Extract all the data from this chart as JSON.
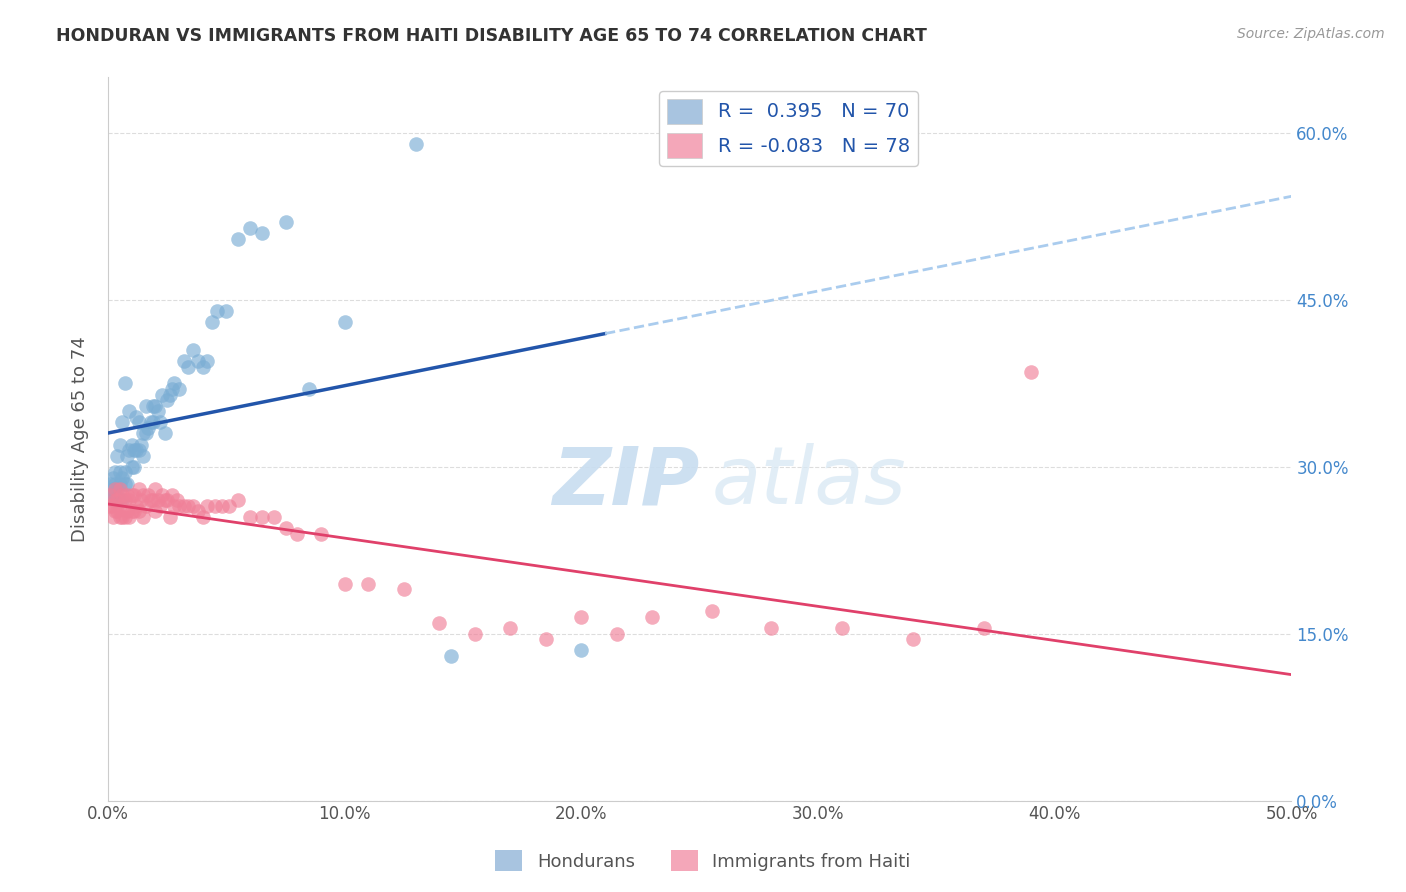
{
  "title": "HONDURAN VS IMMIGRANTS FROM HAITI DISABILITY AGE 65 TO 74 CORRELATION CHART",
  "source": "Source: ZipAtlas.com",
  "ylabel": "Disability Age 65 to 74",
  "xmin": 0.0,
  "xmax": 0.5,
  "ymin": 0.0,
  "ymax": 0.65,
  "legend1_label": "R =  0.395   N = 70",
  "legend2_label": "R = -0.083   N = 78",
  "legend1_color": "#a8c4e0",
  "legend2_color": "#f4a7b9",
  "scatter1_color": "#7aadd4",
  "scatter2_color": "#f08098",
  "line1_color": "#2255aa",
  "line2_color": "#e0406a",
  "line_dashed_color": "#aaccee",
  "watermark_zip": "ZIP",
  "watermark_atlas": "atlas",
  "background_color": "#ffffff",
  "grid_color": "#dddddd",
  "honduran_x": [
    0.001,
    0.001,
    0.002,
    0.002,
    0.002,
    0.003,
    0.003,
    0.003,
    0.004,
    0.004,
    0.004,
    0.005,
    0.005,
    0.005,
    0.005,
    0.006,
    0.006,
    0.006,
    0.007,
    0.007,
    0.007,
    0.008,
    0.008,
    0.009,
    0.009,
    0.01,
    0.01,
    0.011,
    0.011,
    0.012,
    0.012,
    0.013,
    0.013,
    0.014,
    0.015,
    0.015,
    0.016,
    0.016,
    0.017,
    0.018,
    0.019,
    0.019,
    0.02,
    0.021,
    0.022,
    0.023,
    0.024,
    0.025,
    0.026,
    0.027,
    0.028,
    0.03,
    0.032,
    0.034,
    0.036,
    0.038,
    0.04,
    0.042,
    0.044,
    0.046,
    0.05,
    0.055,
    0.06,
    0.065,
    0.075,
    0.085,
    0.1,
    0.13,
    0.145,
    0.2
  ],
  "honduran_y": [
    0.275,
    0.285,
    0.28,
    0.27,
    0.29,
    0.275,
    0.285,
    0.295,
    0.27,
    0.28,
    0.31,
    0.27,
    0.285,
    0.295,
    0.32,
    0.27,
    0.29,
    0.34,
    0.285,
    0.295,
    0.375,
    0.285,
    0.31,
    0.315,
    0.35,
    0.3,
    0.32,
    0.3,
    0.315,
    0.315,
    0.345,
    0.315,
    0.34,
    0.32,
    0.31,
    0.33,
    0.33,
    0.355,
    0.335,
    0.34,
    0.34,
    0.355,
    0.355,
    0.35,
    0.34,
    0.365,
    0.33,
    0.36,
    0.365,
    0.37,
    0.375,
    0.37,
    0.395,
    0.39,
    0.405,
    0.395,
    0.39,
    0.395,
    0.43,
    0.44,
    0.44,
    0.505,
    0.515,
    0.51,
    0.52,
    0.37,
    0.43,
    0.59,
    0.13,
    0.135
  ],
  "haiti_x": [
    0.001,
    0.001,
    0.002,
    0.002,
    0.003,
    0.003,
    0.003,
    0.004,
    0.004,
    0.005,
    0.005,
    0.005,
    0.006,
    0.006,
    0.007,
    0.007,
    0.008,
    0.008,
    0.009,
    0.009,
    0.01,
    0.01,
    0.011,
    0.011,
    0.012,
    0.013,
    0.013,
    0.014,
    0.015,
    0.015,
    0.016,
    0.017,
    0.018,
    0.019,
    0.02,
    0.02,
    0.021,
    0.022,
    0.023,
    0.024,
    0.025,
    0.026,
    0.027,
    0.028,
    0.029,
    0.03,
    0.032,
    0.034,
    0.036,
    0.038,
    0.04,
    0.042,
    0.045,
    0.048,
    0.051,
    0.055,
    0.06,
    0.065,
    0.07,
    0.075,
    0.08,
    0.09,
    0.1,
    0.11,
    0.125,
    0.14,
    0.155,
    0.17,
    0.185,
    0.2,
    0.215,
    0.23,
    0.255,
    0.28,
    0.31,
    0.34,
    0.37,
    0.39
  ],
  "haiti_y": [
    0.265,
    0.275,
    0.255,
    0.265,
    0.26,
    0.27,
    0.28,
    0.26,
    0.27,
    0.255,
    0.265,
    0.28,
    0.255,
    0.275,
    0.255,
    0.27,
    0.26,
    0.275,
    0.255,
    0.27,
    0.26,
    0.275,
    0.26,
    0.275,
    0.265,
    0.26,
    0.28,
    0.27,
    0.255,
    0.275,
    0.265,
    0.275,
    0.27,
    0.27,
    0.26,
    0.28,
    0.27,
    0.265,
    0.275,
    0.27,
    0.27,
    0.255,
    0.275,
    0.265,
    0.27,
    0.265,
    0.265,
    0.265,
    0.265,
    0.26,
    0.255,
    0.265,
    0.265,
    0.265,
    0.265,
    0.27,
    0.255,
    0.255,
    0.255,
    0.245,
    0.24,
    0.24,
    0.195,
    0.195,
    0.19,
    0.16,
    0.15,
    0.155,
    0.145,
    0.165,
    0.15,
    0.165,
    0.17,
    0.155,
    0.155,
    0.145,
    0.155,
    0.385
  ]
}
